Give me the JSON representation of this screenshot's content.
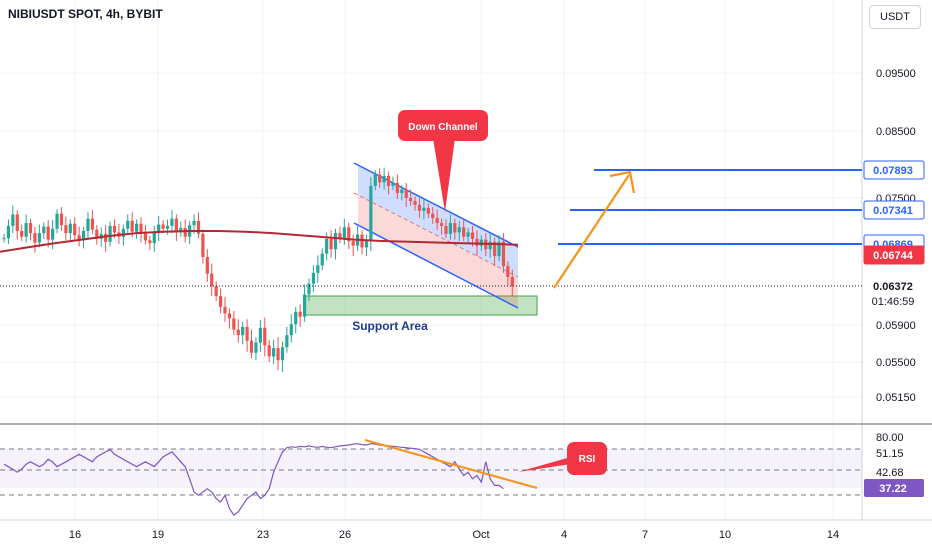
{
  "header": {
    "title": "NIBIUSDT SPOT, 4h, BYBIT",
    "currency": "USDT"
  },
  "colors": {
    "up": "#26a69a",
    "down": "#ef5350",
    "ma": "#b22833",
    "blue": "#2962ff",
    "orange": "#f7931a",
    "rsi": "#7e57c2",
    "red_label": "#f23645"
  },
  "chart_data": [
    {
      "type": "candlestick",
      "title": "NIBIUSDT SPOT, 4h, BYBIT",
      "y_ticks": [
        "0.09500",
        "0.08500",
        "0.07500",
        "0.05900",
        "0.05500",
        "0.05150"
      ],
      "x_ticks": [
        "16",
        "19",
        "23",
        "26",
        "Oct",
        "4",
        "7",
        "10",
        "14"
      ],
      "price_labels": [
        {
          "text": "0.07893",
          "value": 0.07893,
          "style": "blue"
        },
        {
          "text": "0.07341",
          "value": 0.07341,
          "style": "blue"
        },
        {
          "text": "0.06869",
          "value": 0.06869,
          "style": "blue"
        },
        {
          "text": "0.06744",
          "value": 0.06744,
          "style": "red"
        },
        {
          "text": "0.06372",
          "value": 0.06372,
          "style": "current"
        }
      ],
      "countdown": "01:46:59",
      "close_series": [
        0.0695,
        0.0712,
        0.0728,
        0.0705,
        0.0697,
        0.0716,
        0.0702,
        0.0689,
        0.0702,
        0.0711,
        0.0693,
        0.0708,
        0.0729,
        0.0713,
        0.0702,
        0.0715,
        0.0699,
        0.0692,
        0.0705,
        0.0722,
        0.0707,
        0.0694,
        0.0701,
        0.069,
        0.0712,
        0.0703,
        0.0697,
        0.0708,
        0.0719,
        0.0704,
        0.0715,
        0.0701,
        0.0692,
        0.0688,
        0.0703,
        0.0714,
        0.0708,
        0.0712,
        0.0722,
        0.0703,
        0.0709,
        0.0697,
        0.0713,
        0.0719,
        0.0701,
        0.0672,
        0.0652,
        0.0637,
        0.0625,
        0.0612,
        0.0604,
        0.0598,
        0.0585,
        0.0579,
        0.0588,
        0.0573,
        0.056,
        0.0571,
        0.0587,
        0.0568,
        0.0556,
        0.0565,
        0.0552,
        0.0566,
        0.0579,
        0.0591,
        0.0606,
        0.06,
        0.0627,
        0.064,
        0.0653,
        0.0662,
        0.0676,
        0.0694,
        0.0681,
        0.0702,
        0.0694,
        0.071,
        0.0691,
        0.0685,
        0.07,
        0.0683,
        0.0691,
        0.0767,
        0.0783,
        0.0772,
        0.0781,
        0.0767,
        0.0771,
        0.0757,
        0.0762,
        0.075,
        0.0746,
        0.0741,
        0.0733,
        0.0737,
        0.0729,
        0.0723,
        0.0716,
        0.0712,
        0.0701,
        0.0716,
        0.0703,
        0.071,
        0.0697,
        0.0703,
        0.0694,
        0.0685,
        0.0693,
        0.0681,
        0.069,
        0.0673,
        0.069,
        0.0661,
        0.0648,
        0.0637
      ],
      "ma_series": [
        0.0678,
        0.0683,
        0.0688,
        0.0693,
        0.0698,
        0.0702,
        0.0704,
        0.0705,
        0.0705,
        0.0704,
        0.0702,
        0.0699,
        0.0696,
        0.0693,
        0.0691,
        0.069,
        0.0689,
        0.0688,
        0.0687,
        0.0686
      ],
      "annotations": [
        "Down Channel",
        "Support Area",
        "RSI"
      ]
    },
    {
      "type": "line",
      "title": "RSI",
      "y_ticks": [
        "80.00",
        "51.15",
        "42.68"
      ],
      "current_label": "37.22",
      "values": [
        45,
        44,
        43,
        42,
        43,
        45,
        46,
        45,
        44,
        45,
        47,
        46,
        44,
        45,
        46,
        47,
        48,
        49,
        48,
        47,
        46,
        48,
        49,
        50,
        51,
        49,
        48,
        47,
        46,
        45,
        44,
        45,
        46,
        45,
        44,
        46,
        48,
        49,
        50,
        48,
        46,
        44,
        40,
        36,
        35,
        36,
        37,
        36,
        34,
        33,
        35,
        31,
        29,
        30,
        32,
        34,
        35,
        36,
        34,
        35,
        37,
        42,
        46,
        50,
        54,
        56,
        55,
        57,
        56,
        58,
        56,
        55,
        57,
        55,
        54,
        56,
        58,
        59,
        60,
        62,
        63,
        61,
        60,
        63,
        62,
        60,
        59,
        58,
        57,
        56,
        55,
        54,
        53,
        52,
        51,
        50,
        49,
        48,
        47,
        46,
        45,
        44,
        46,
        43,
        41,
        42,
        40,
        41,
        39,
        46,
        40,
        38,
        38,
        37
      ]
    }
  ]
}
